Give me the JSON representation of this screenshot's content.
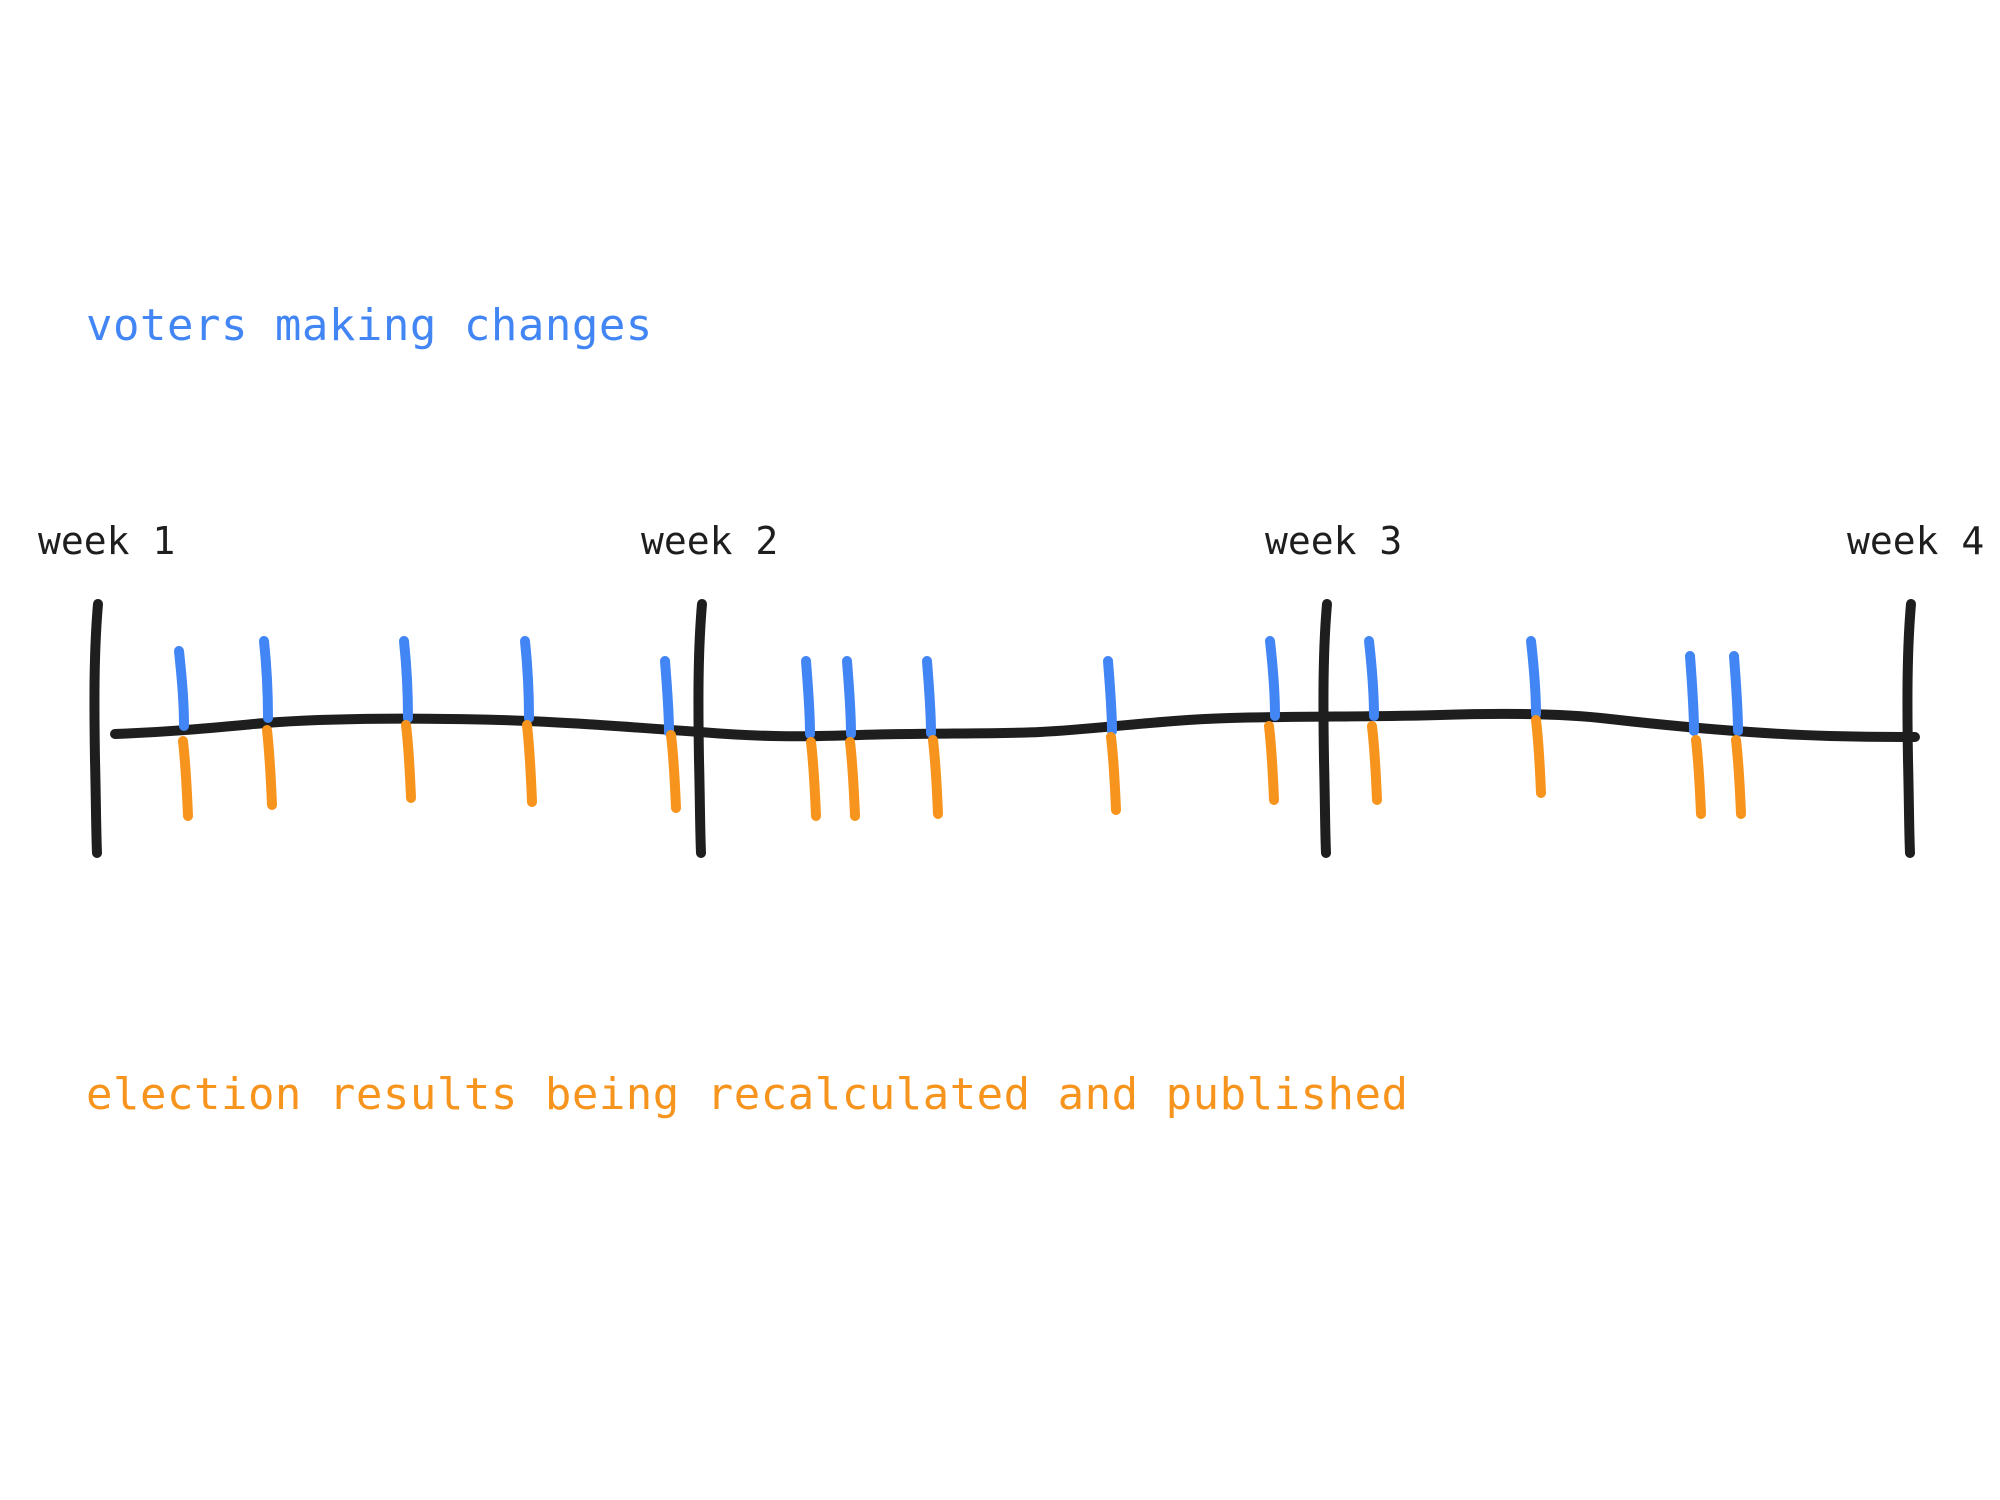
{
  "legend": {
    "voters_label": "voters making changes",
    "results_label": "election results being recalculated and published"
  },
  "weeks": [
    "week 1",
    "week 2",
    "week 3",
    "week 4"
  ],
  "colors": {
    "timeline": "#1e1e1e",
    "voter_change": "#4285f4",
    "recalculation": "#f7941d",
    "voters_text": "#4285f4",
    "results_text": "#f7941d"
  }
}
